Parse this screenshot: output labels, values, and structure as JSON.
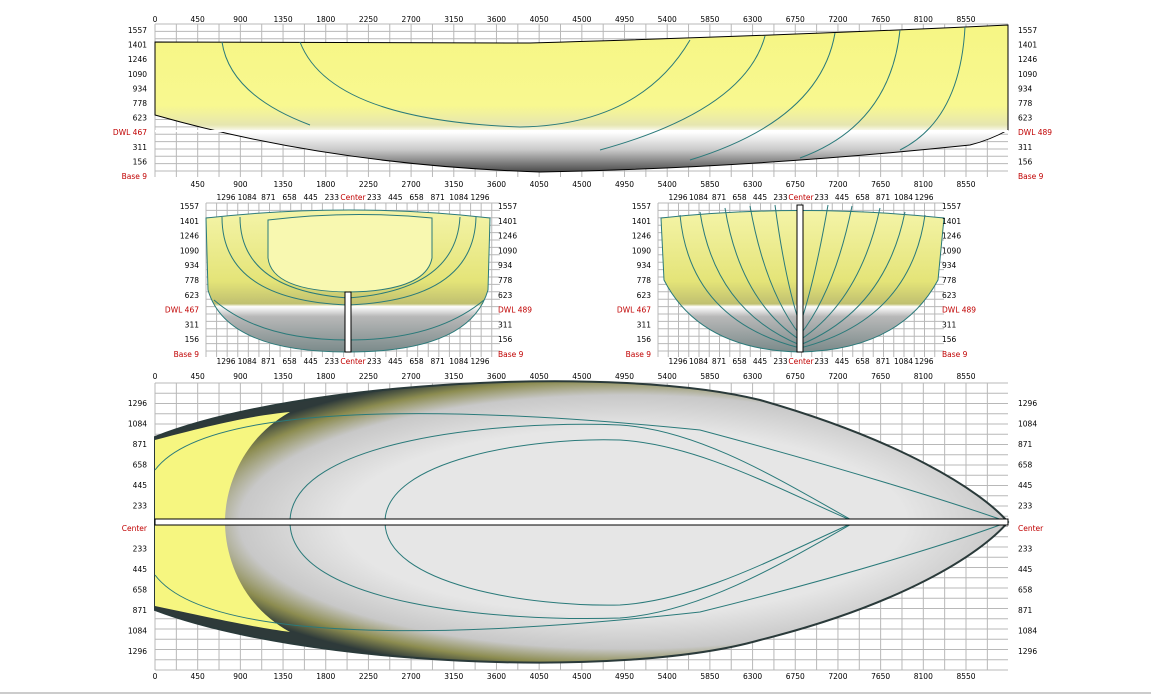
{
  "profile": {
    "x_labels_top": [
      "0",
      "450",
      "900",
      "1350",
      "1800",
      "2250",
      "2700",
      "3150",
      "3600",
      "4050",
      "4500",
      "4950",
      "5400",
      "5850",
      "6300",
      "6750",
      "7200",
      "7650",
      "8100",
      "8550"
    ],
    "x_labels_bottom": [
      "450",
      "900",
      "1350",
      "1800",
      "2250",
      "2700",
      "3150",
      "3600",
      "4050",
      "4500",
      "4950",
      "5400",
      "5850",
      "6300",
      "6750",
      "7200",
      "7650",
      "8100",
      "8550"
    ],
    "y_labels_left": [
      "1557",
      "1401",
      "1246",
      "1090",
      "934",
      "778",
      "623",
      "DWL 467",
      "311",
      "156",
      "Base 9"
    ],
    "y_labels_right": [
      "1557",
      "1401",
      "1246",
      "1090",
      "934",
      "778",
      "623",
      "DWL 489",
      "311",
      "156",
      "Base 9"
    ]
  },
  "body_aft": {
    "x_labels": [
      "1296",
      "1084",
      "871",
      "658",
      "445",
      "233",
      "Center",
      "233",
      "445",
      "658",
      "871",
      "1084",
      "1296"
    ],
    "y_labels_left": [
      "1557",
      "1401",
      "1246",
      "1090",
      "934",
      "778",
      "623",
      "DWL 467",
      "311",
      "156",
      "Base 9"
    ],
    "y_labels_right": [
      "1557",
      "1401",
      "1246",
      "1090",
      "934",
      "778",
      "623",
      "DWL 489",
      "311",
      "156",
      "Base 9"
    ]
  },
  "body_fwd": {
    "x_labels": [
      "1296",
      "1084",
      "871",
      "658",
      "445",
      "233",
      "Center",
      "233",
      "445",
      "658",
      "871",
      "1084",
      "1296"
    ],
    "y_labels_left": [
      "1557",
      "1401",
      "1246",
      "1090",
      "934",
      "778",
      "623",
      "DWL 467",
      "311",
      "156",
      "Base 9"
    ],
    "y_labels_right": [
      "1557",
      "1401",
      "1246",
      "1090",
      "934",
      "778",
      "623",
      "DWL 489",
      "311",
      "156",
      "Base 9"
    ]
  },
  "plan": {
    "x_labels_top": [
      "0",
      "450",
      "900",
      "1350",
      "1800",
      "2250",
      "2700",
      "3150",
      "3600",
      "4050",
      "4500",
      "4950",
      "5400",
      "5850",
      "6300",
      "6750",
      "7200",
      "7650",
      "8100",
      "8550"
    ],
    "x_labels_bottom": [
      "0",
      "450",
      "900",
      "1350",
      "1800",
      "2250",
      "2700",
      "3150",
      "3600",
      "4050",
      "4500",
      "4950",
      "5400",
      "5850",
      "6300",
      "6750",
      "7200",
      "7650",
      "8100",
      "8550"
    ],
    "y_labels": [
      "1296",
      "1084",
      "871",
      "658",
      "445",
      "233",
      "Center",
      "233",
      "445",
      "658",
      "871",
      "1084",
      "1296"
    ]
  }
}
